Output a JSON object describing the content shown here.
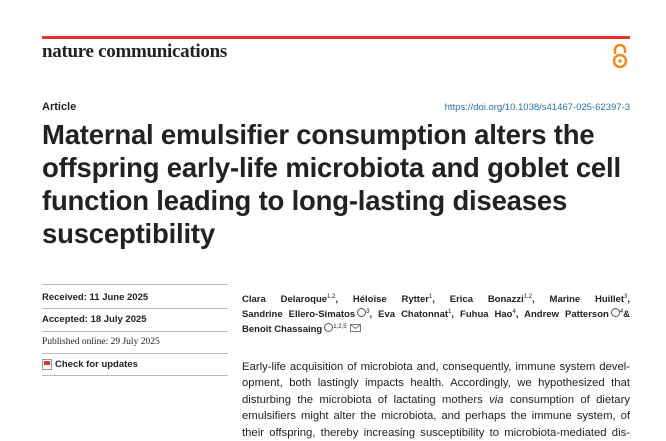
{
  "header": {
    "journal": "nature communications"
  },
  "article": {
    "type": "Article",
    "doi": "https://doi.org/10.1038/s41467-025-62397-3",
    "title_lines": [
      "Maternal emulsifier consumption alters the",
      "offspring early-life microbiota and goblet cell",
      "function leading to long-lasting diseases",
      "susceptibility"
    ]
  },
  "dates": {
    "received": "Received: 11 June 2025",
    "accepted": "Accepted: 18 July 2025",
    "published": "Published online: 29 July 2025",
    "check": "Check for updates"
  },
  "author_lines": [
    [
      {
        "name": "Clara Delaroque",
        "affil": "1,2",
        "sep": ","
      },
      {
        "name": "Héloïse Rytter",
        "affil": "1",
        "sep": ","
      },
      {
        "name": "Erica Bonazzi",
        "affil": "1,2",
        "sep": ","
      },
      {
        "name": "Marine Huillet",
        "affil": "3",
        "sep": ","
      }
    ],
    [
      {
        "name": "Sandrine Ellero-Simatos",
        "affil": "3",
        "orcid": true,
        "sep": ","
      },
      {
        "name": "Eva Chatonnat",
        "affil": "1",
        "sep": ","
      },
      {
        "name": "Fuhua Hao",
        "affil": "4",
        "sep": ","
      },
      {
        "name": "Andrew Patterson",
        "affil": "4",
        "orcid": true,
        "sep": "&"
      }
    ],
    [
      {
        "name": "Benoit Chassaing",
        "affil": "1,2,5",
        "orcid": true,
        "email": true
      }
    ]
  ],
  "abstract": {
    "lines": [
      "Early-life acquisition of microbiota and, consequently, immune system devel-",
      "opment, both lastingly impacts health. Accordingly, we hypothesized that",
      {
        "before": "disturbing the microbiota of lactating mothers",
        "em": "via",
        "after": "consumption of dietary"
      },
      "emulsifiers might alter the microbiota, and perhaps the immune system, of",
      "their offspring, thereby increasing susceptibility to microbiota-mediated dis-"
    ]
  }
}
